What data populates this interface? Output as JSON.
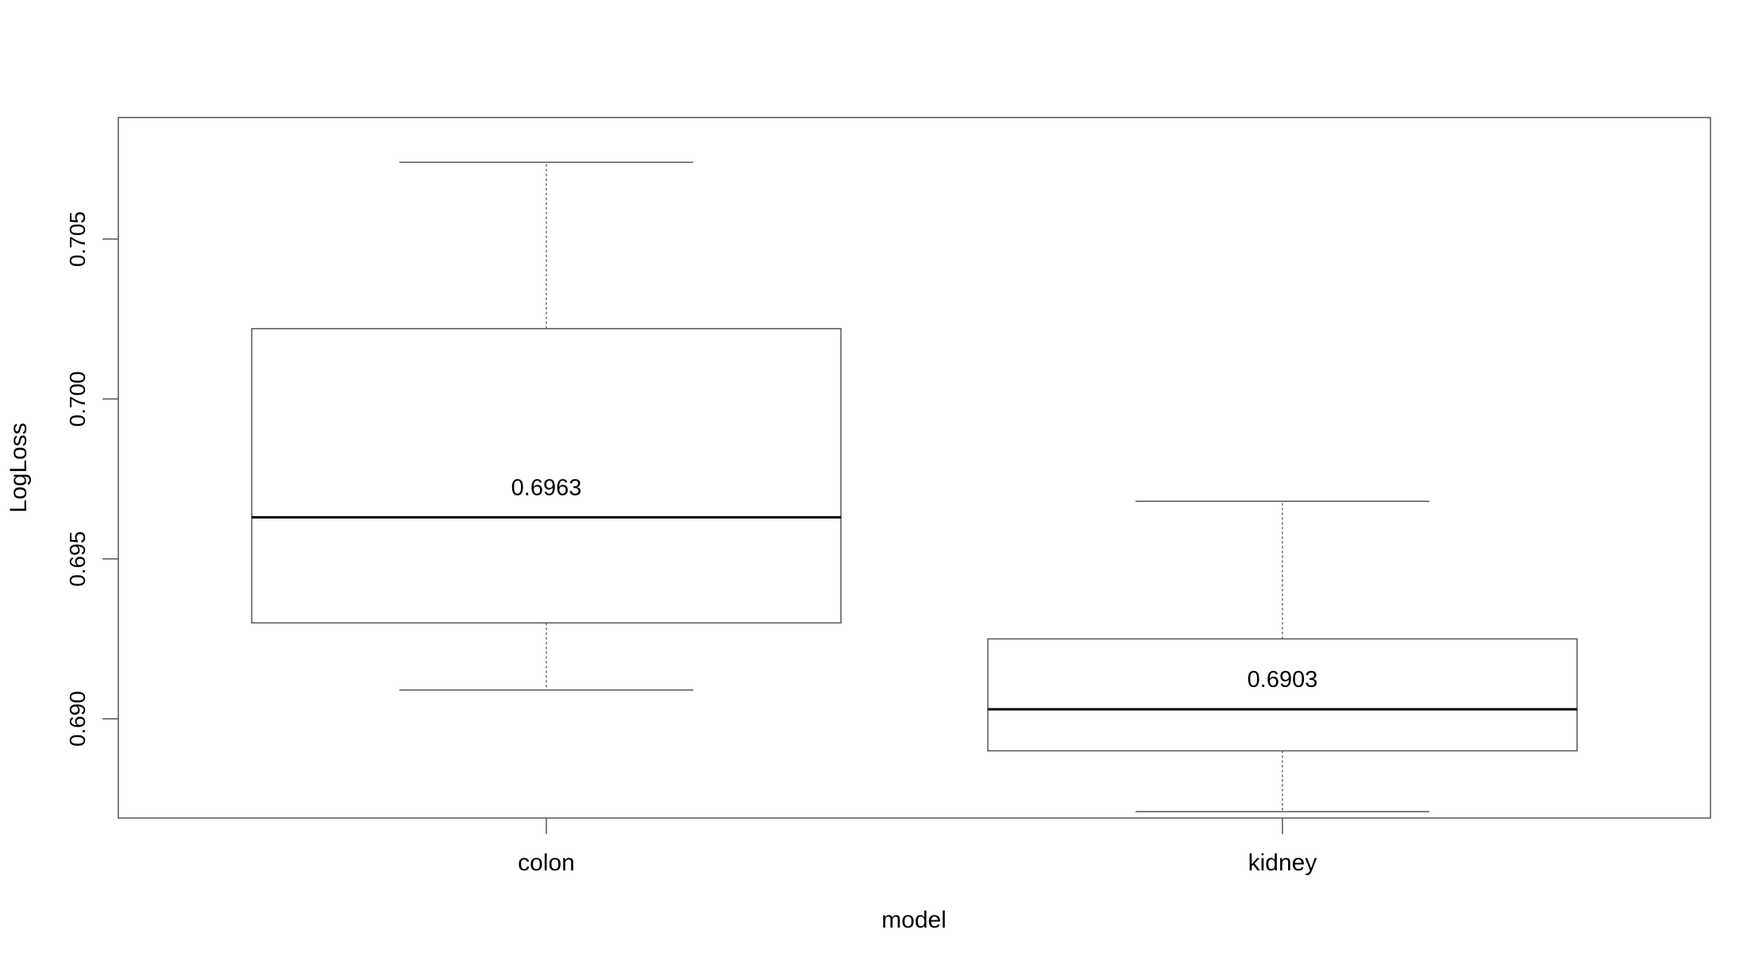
{
  "chart_data": {
    "type": "boxplot",
    "title": "",
    "xlabel": "model",
    "ylabel": "LogLoss",
    "categories": [
      "colon",
      "kidney"
    ],
    "ylim": [
      0.6869,
      0.7088
    ],
    "yticks": [
      0.69,
      0.695,
      0.7,
      0.705
    ],
    "ytick_labels": [
      "0.690",
      "0.695",
      "0.700",
      "0.705"
    ],
    "grid": false,
    "legend": "none",
    "boxes": [
      {
        "category": "colon",
        "whisker_low": 0.6909,
        "q1": 0.693,
        "median": 0.6963,
        "q3": 0.7022,
        "whisker_high": 0.7074,
        "label": "0.6963"
      },
      {
        "category": "kidney",
        "whisker_low": 0.6871,
        "q1": 0.689,
        "median": 0.6903,
        "q3": 0.6925,
        "whisker_high": 0.6968,
        "label": "0.6903"
      }
    ]
  }
}
